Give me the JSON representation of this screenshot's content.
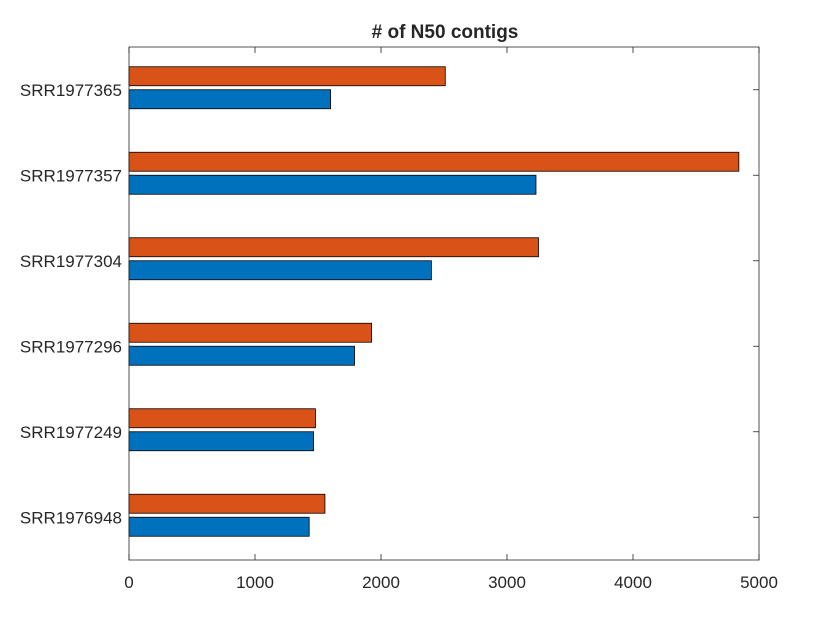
{
  "chart_data": {
    "type": "bar",
    "orientation": "horizontal",
    "title": "# of N50 contigs",
    "xlabel": "",
    "ylabel": "",
    "categories": [
      "SRR1977365",
      "SRR1977357",
      "SRR1977304",
      "SRR1977296",
      "SRR1977249",
      "SRR1976948"
    ],
    "series": [
      {
        "values": [
          2510,
          4840,
          3250,
          1925,
          1480,
          1555
        ],
        "color": "#D95319"
      },
      {
        "values": [
          1600,
          3230,
          2400,
          1790,
          1465,
          1430
        ],
        "color": "#0072BD"
      }
    ],
    "xlim": [
      0,
      5000
    ],
    "xticks": [
      0,
      1000,
      2000,
      3000,
      4000,
      5000
    ],
    "grid": false,
    "legend": "none"
  }
}
